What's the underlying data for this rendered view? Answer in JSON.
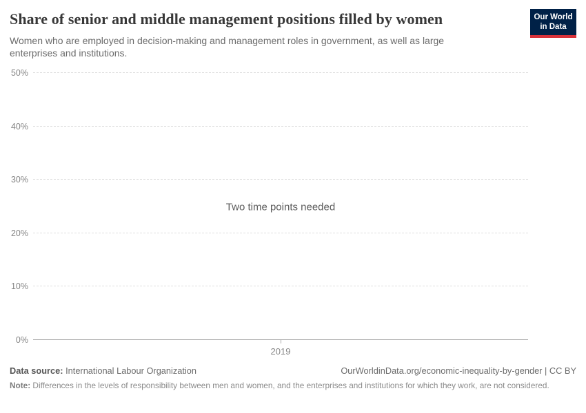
{
  "header": {
    "title": "Share of senior and middle management positions filled by women",
    "subtitle": "Women who are employed in decision-making and management roles in government, as well as large enterprises and institutions.",
    "logo": {
      "line1": "Our World",
      "line2": "in Data",
      "bg_color": "#002147",
      "accent_color": "#d8323a"
    }
  },
  "chart_data": {
    "type": "line",
    "title": "Share of senior and middle management positions filled by women",
    "series": [],
    "message": "Two time points needed",
    "ylabel": "",
    "xlabel": "",
    "ylim": [
      0,
      50
    ],
    "y_tick_labels": [
      "50%",
      "40%",
      "30%",
      "20%",
      "10%",
      "0%"
    ],
    "x_tick_labels": [
      "2019"
    ],
    "grid": "horizontal-dashed",
    "legend_position": "none"
  },
  "footer": {
    "data_source_label": "Data source:",
    "data_source_value": " International Labour Organization",
    "attribution": "OurWorldinData.org/economic-inequality-by-gender | CC BY",
    "note_label": "Note:",
    "note_value": " Differences in the levels of responsibility between men and women, and the enterprises and institutions for which they work, are not considered."
  }
}
